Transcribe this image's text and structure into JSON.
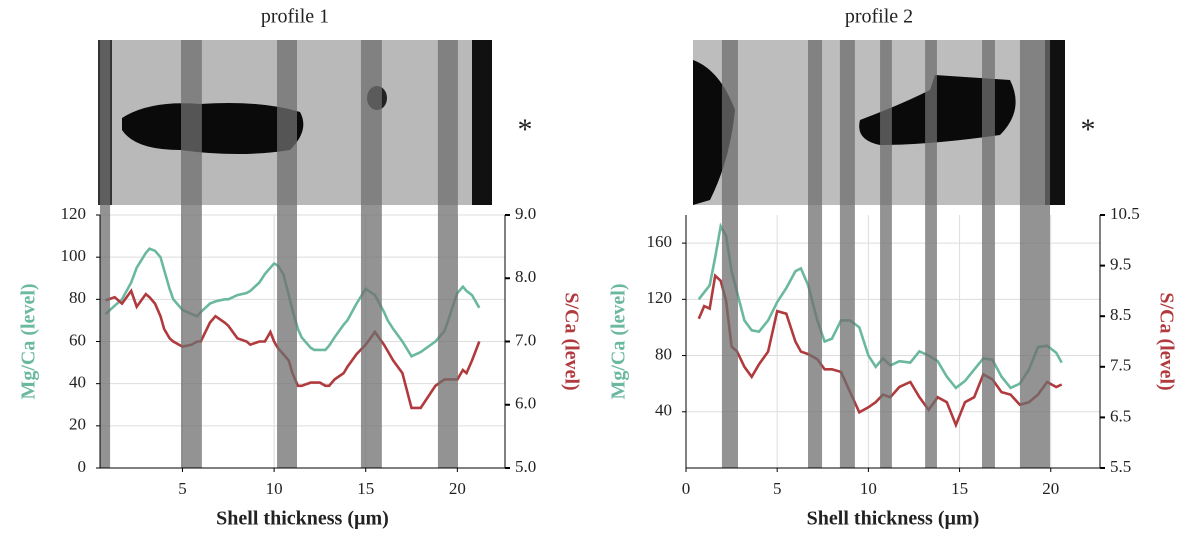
{
  "chart_data": [
    {
      "type": "line",
      "title": "profile 1",
      "xlabel": "Shell thickness (µm)",
      "ylabel": "Mg/Ca (level)",
      "y2label": "S/Ca (level)",
      "annotation": "*",
      "xlim": [
        0.5,
        22.6
      ],
      "xticks": [
        5,
        10,
        15,
        20
      ],
      "ylim": [
        0,
        120
      ],
      "yticks": [
        0,
        20,
        40,
        60,
        80,
        100,
        120
      ],
      "y2lim": [
        5,
        9
      ],
      "y2ticks": [
        {
          "value": 5,
          "label": "5.0"
        },
        {
          "value": 6,
          "label": "6.0"
        },
        {
          "value": 7,
          "label": "7.0"
        },
        {
          "value": 8,
          "label": "8.0"
        },
        {
          "value": 9,
          "label": "9.0"
        }
      ],
      "grid": true,
      "bands": [
        [
          0.5,
          1.05
        ],
        [
          4.92,
          6.06
        ],
        [
          10.16,
          11.25
        ],
        [
          14.74,
          15.88
        ],
        [
          18.94,
          20.03
        ]
      ],
      "x": [
        0.8,
        1.3,
        1.7,
        2.2,
        2.5,
        3.0,
        3.2,
        3.5,
        3.8,
        4.0,
        4.3,
        4.5,
        5.0,
        5.5,
        5.8,
        6.0,
        6.5,
        6.8,
        7.3,
        7.5,
        8.0,
        8.5,
        8.7,
        9.2,
        9.5,
        9.8,
        10.0,
        10.2,
        10.5,
        10.8,
        11.0,
        11.3,
        11.5,
        12.0,
        12.2,
        12.5,
        12.8,
        13.0,
        13.3,
        13.8,
        14.0,
        14.5,
        15.0,
        15.5,
        16.0,
        16.2,
        16.5,
        17.0,
        17.5,
        18.0,
        18.8,
        19.3,
        19.5,
        19.8,
        20.0,
        20.3,
        20.5,
        20.8,
        21.2
      ],
      "series": [
        {
          "color": "#6bb8a0",
          "axis": "y",
          "values": [
            73,
            77,
            80,
            88,
            95,
            102,
            104,
            103,
            100,
            94,
            85,
            80,
            75,
            73,
            72,
            74,
            78,
            79,
            80,
            80,
            82,
            83,
            84,
            88,
            92,
            95,
            97,
            96,
            92,
            82,
            75,
            66,
            62,
            57,
            56,
            56,
            56,
            58,
            62,
            68,
            70,
            78,
            85,
            82,
            74,
            70,
            66,
            60,
            53,
            55,
            60,
            65,
            70,
            78,
            83,
            86,
            84,
            82,
            76
          ]
        },
        {
          "color": "#b03a3e",
          "axis": "y2",
          "values": [
            7.65,
            7.7,
            7.6,
            7.8,
            7.55,
            7.75,
            7.7,
            7.6,
            7.4,
            7.2,
            7.05,
            7.0,
            6.92,
            6.95,
            7.0,
            7.0,
            7.3,
            7.4,
            7.3,
            7.25,
            7.05,
            7.0,
            6.95,
            7.0,
            7.0,
            7.15,
            7.0,
            6.9,
            6.8,
            6.7,
            6.5,
            6.3,
            6.3,
            6.35,
            6.35,
            6.35,
            6.3,
            6.3,
            6.4,
            6.5,
            6.6,
            6.8,
            6.95,
            7.15,
            6.95,
            6.85,
            6.7,
            6.5,
            5.95,
            5.95,
            6.3,
            6.4,
            6.4,
            6.4,
            6.4,
            6.55,
            6.5,
            6.7,
            7.0
          ]
        }
      ]
    },
    {
      "type": "line",
      "title": "profile 2",
      "xlabel": "Shell thickness (µm)",
      "ylabel": "Mg/Ca (level)",
      "y2label": "S/Ca (level)",
      "annotation": "*",
      "xlim": [
        0,
        22.7
      ],
      "xticks": [
        0,
        5,
        10,
        15,
        20
      ],
      "ylim": [
        0,
        180
      ],
      "yticks": [
        40,
        80,
        120,
        160
      ],
      "y2lim": [
        5.5,
        10.5
      ],
      "y2ticks": [
        5.5,
        6.5,
        7.5,
        8.5,
        9.5,
        10.5
      ],
      "grid": true,
      "bands": [
        [
          1.97,
          2.85
        ],
        [
          6.69,
          7.46
        ],
        [
          8.44,
          9.26
        ],
        [
          10.64,
          11.29
        ],
        [
          13.11,
          13.76
        ],
        [
          16.23,
          16.94
        ],
        [
          18.31,
          19.96
        ]
      ],
      "x": [
        0.7,
        1.0,
        1.3,
        1.6,
        1.9,
        2.2,
        2.5,
        2.8,
        3.2,
        3.6,
        4.0,
        4.5,
        5.0,
        5.5,
        6.0,
        6.3,
        6.7,
        7.2,
        7.6,
        8.0,
        8.5,
        9.0,
        9.5,
        10.0,
        10.4,
        10.8,
        11.2,
        11.7,
        12.3,
        12.8,
        13.3,
        13.8,
        14.3,
        14.8,
        15.3,
        15.8,
        16.3,
        16.8,
        17.3,
        17.8,
        18.3,
        18.8,
        19.3,
        19.8,
        20.3,
        20.6
      ],
      "series": [
        {
          "color": "#6bb8a0",
          "axis": "y",
          "values": [
            120,
            125,
            130,
            150,
            172,
            165,
            140,
            125,
            105,
            98,
            97,
            105,
            118,
            128,
            140,
            142,
            130,
            105,
            90,
            92,
            105,
            105,
            100,
            80,
            72,
            78,
            73,
            76,
            75,
            83,
            80,
            76,
            65,
            57,
            62,
            70,
            78,
            77,
            65,
            57,
            60,
            70,
            86,
            87,
            82,
            75
          ]
        },
        {
          "color": "#b03a3e",
          "axis": "y2",
          "values": [
            8.45,
            8.7,
            8.65,
            9.3,
            9.2,
            8.8,
            7.9,
            7.8,
            7.5,
            7.3,
            7.55,
            7.8,
            8.6,
            8.55,
            8.0,
            7.8,
            7.75,
            7.65,
            7.45,
            7.45,
            7.4,
            7.0,
            6.6,
            6.7,
            6.8,
            6.95,
            6.9,
            7.1,
            7.2,
            6.9,
            6.65,
            6.9,
            6.8,
            6.35,
            6.8,
            6.9,
            7.35,
            7.25,
            7.0,
            6.95,
            6.75,
            6.8,
            6.95,
            7.2,
            7.1,
            7.15
          ]
        }
      ]
    }
  ]
}
